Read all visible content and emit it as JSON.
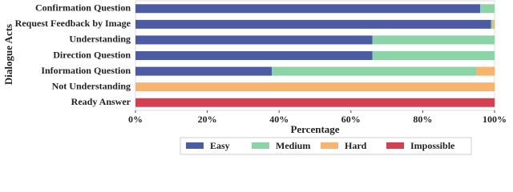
{
  "chart_data": {
    "type": "stacked-bar-horizontal",
    "xlabel": "Percentage",
    "ylabel": "Dialogue Acts",
    "categories": [
      "Confirmation Question",
      "Request Feedback by Image",
      "Understanding",
      "Direction Question",
      "Information Question",
      "Not Understanding",
      "Ready Answer"
    ],
    "series": [
      {
        "name": "Easy",
        "color": "#4b5ba6",
        "values": [
          96,
          99,
          66,
          66,
          38,
          0,
          0
        ]
      },
      {
        "name": "Medium",
        "color": "#8ad4a6",
        "values": [
          4,
          0.5,
          34,
          34,
          57,
          0,
          0
        ]
      },
      {
        "name": "Hard",
        "color": "#f9b36b",
        "values": [
          0,
          0.5,
          0,
          0,
          5,
          100,
          0
        ]
      },
      {
        "name": "Impossible",
        "color": "#d63f4f",
        "values": [
          0,
          0,
          0,
          0,
          0,
          0,
          100
        ]
      }
    ],
    "xlim": [
      0,
      100
    ],
    "xticks": [
      {
        "value": 0,
        "label": "0%"
      },
      {
        "value": 20,
        "label": "20%"
      },
      {
        "value": 40,
        "label": "40%"
      },
      {
        "value": 60,
        "label": "60%"
      },
      {
        "value": 80,
        "label": "80%"
      },
      {
        "value": 100,
        "label": "100%"
      }
    ],
    "legend": "bottom"
  }
}
